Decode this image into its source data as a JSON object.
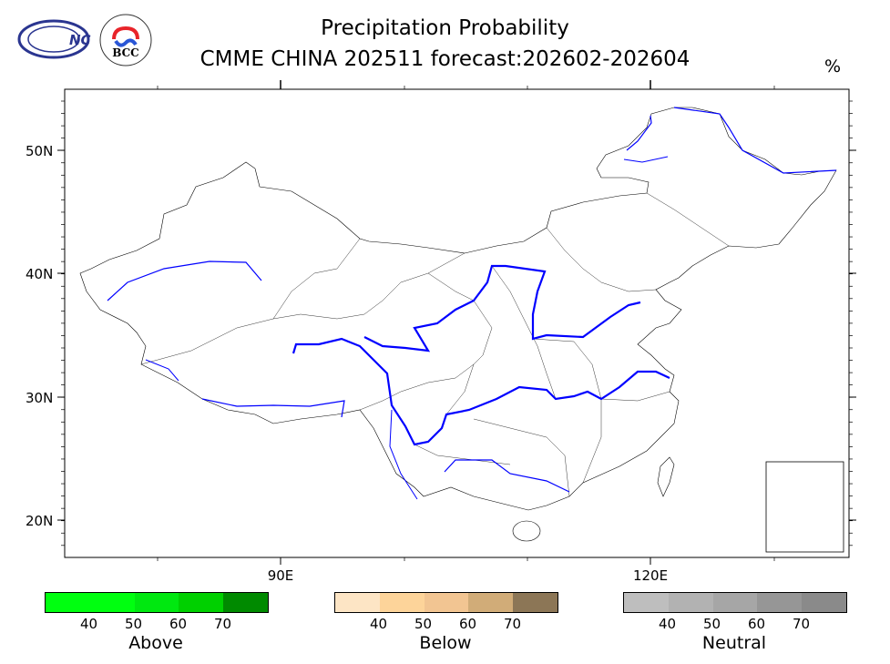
{
  "header": {
    "title_line1": "Precipitation Probability",
    "title_line2": "CMME CHINA 202511 forecast:202602-202604",
    "unit": "%",
    "logos": [
      "NCC",
      "BCC"
    ]
  },
  "map": {
    "lat_labels": [
      "50N",
      "40N",
      "30N",
      "20N"
    ],
    "lon_labels": [
      "90E",
      "120E"
    ]
  },
  "legends": [
    {
      "name": "Above",
      "ticks": [
        "40",
        "50",
        "60",
        "70"
      ],
      "colors": [
        "#00ff10",
        "#00e810",
        "#00d000",
        "#008a00"
      ]
    },
    {
      "name": "Below",
      "ticks": [
        "40",
        "50",
        "60",
        "70"
      ],
      "colors": [
        "#fde5c5",
        "#fdd49a",
        "#f2c592",
        "#d1ac78",
        "#8c7656"
      ]
    },
    {
      "name": "Neutral",
      "ticks": [
        "40",
        "50",
        "60",
        "70"
      ],
      "colors": [
        "#bebebe",
        "#b2b2b2",
        "#a6a6a6",
        "#969696",
        "#8a8a8a"
      ]
    }
  ]
}
